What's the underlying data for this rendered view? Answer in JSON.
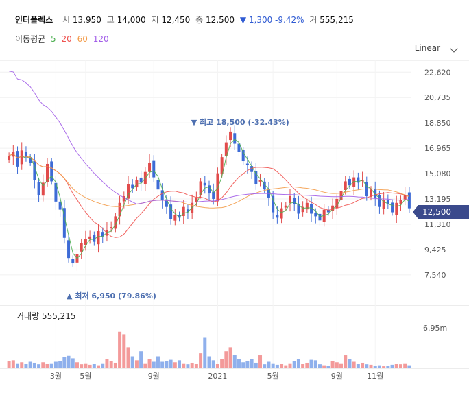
{
  "header": {
    "name": "인터플렉스",
    "open_label": "시",
    "open": "13,950",
    "high_label": "고",
    "high": "14,000",
    "low_label": "저",
    "low": "12,450",
    "close_label": "종",
    "close": "12,500",
    "change": "▼ 1,300 -9.42%",
    "volume_label": "거",
    "volume": "555,215"
  },
  "moving_average": {
    "label": "이동평균",
    "periods": [
      {
        "name": "5",
        "color": "#4caf50"
      },
      {
        "name": "20",
        "color": "#ef5350"
      },
      {
        "name": "60",
        "color": "#f39c4a"
      },
      {
        "name": "120",
        "color": "#a25ee8"
      }
    ]
  },
  "scale_selector": {
    "label": "Linear",
    "icon": "chevron-down-icon"
  },
  "volume_panel": {
    "title": "거래량 555,215"
  },
  "current_price_tag": "12,500",
  "annotations": {
    "high": "▼ 최고 18,500 (-32.43%)",
    "low": "▲ 최저 6,950 (79.86%)"
  },
  "colors": {
    "up": "#e14b4b",
    "down": "#3d6bd6",
    "accent": "#3b4a8c"
  },
  "chart_data": {
    "type": "candlestick",
    "y_ticks": [
      "22,620",
      "20,735",
      "18,850",
      "16,965",
      "15,080",
      "13,195",
      "11,310",
      "9,425",
      "7,540"
    ],
    "ylim": [
      5800,
      23500
    ],
    "x_ticks": [
      "3월",
      "5월",
      "9월",
      "2021",
      "5월",
      "9월",
      "11월"
    ],
    "volume_tick": "6.95m",
    "volume_max": 8500000,
    "grid": true,
    "closes": [
      16400,
      16700,
      15600,
      16800,
      16300,
      15900,
      14600,
      13500,
      14400,
      15800,
      14500,
      13000,
      12400,
      10300,
      8800,
      8400,
      9100,
      9900,
      10200,
      10400,
      10000,
      10800,
      10400,
      10900,
      11100,
      11900,
      12900,
      13400,
      14300,
      14000,
      14600,
      14400,
      15200,
      15900,
      14800,
      13900,
      13100,
      12600,
      11700,
      12000,
      11800,
      12600,
      12200,
      12900,
      13300,
      14500,
      14200,
      13600,
      13200,
      15100,
      16300,
      17400,
      18200,
      17300,
      16700,
      16000,
      15700,
      15200,
      14300,
      14600,
      13900,
      13300,
      12200,
      11800,
      12500,
      12700,
      13400,
      12800,
      12100,
      12600,
      12900,
      12100,
      11900,
      11600,
      12400,
      12200,
      12700,
      13200,
      13800,
      14500,
      14200,
      14800,
      14400,
      14600,
      13400,
      13900,
      13300,
      12600,
      13100,
      12800,
      12200,
      12900,
      13100,
      13500,
      12500
    ],
    "volumes": [
      1400000,
      1600000,
      1000000,
      1200000,
      900000,
      1300000,
      1100000,
      800000,
      1200000,
      900000,
      1000000,
      1300000,
      1500000,
      2200000,
      2500000,
      2000000,
      1200000,
      800000,
      1000000,
      700000,
      900000,
      600000,
      1000000,
      1800000,
      1400000,
      1100000,
      7300000,
      6800000,
      4200000,
      2400000,
      1600000,
      3400000,
      1000000,
      1800000,
      1300000,
      2400000,
      1300000,
      1400000,
      1700000,
      1200000,
      1600000,
      1000000,
      800000,
      1100000,
      900000,
      3000000,
      6100000,
      2400000,
      1600000,
      900000,
      1800000,
      3400000,
      4200000,
      2700000,
      1800000,
      1200000,
      1400000,
      1800000,
      1100000,
      2600000,
      800000,
      1300000,
      1000000,
      700000,
      900000,
      600000,
      1000000,
      1500000,
      1800000,
      900000,
      1100000,
      1700000,
      1600000,
      800000,
      600000,
      500000,
      1400000,
      1200000,
      1000000,
      2600000,
      1800000,
      1300000,
      900000,
      1100000,
      800000,
      700000,
      500000,
      600000,
      400000,
      500000,
      700000,
      900000,
      800000,
      1000000,
      600000
    ]
  }
}
